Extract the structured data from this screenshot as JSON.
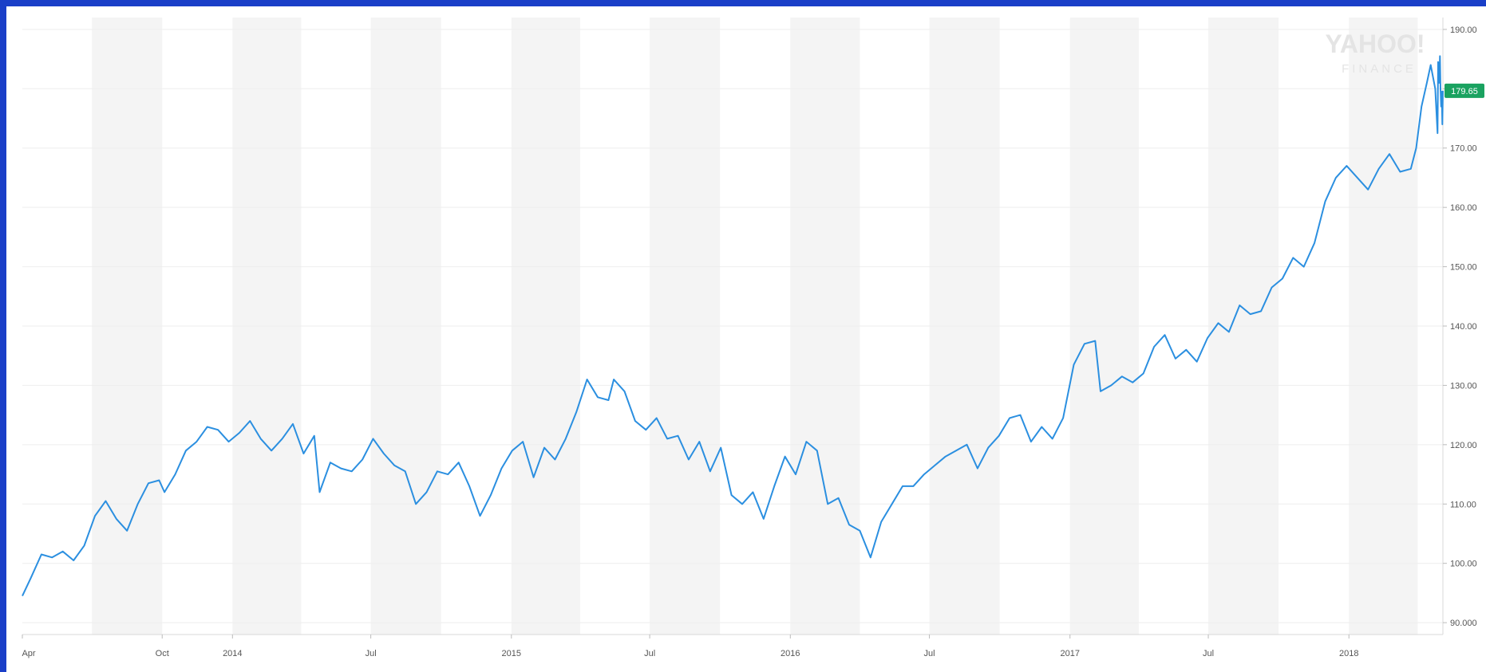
{
  "colors": {
    "line": "#2b8fe0",
    "last_price_bg": "#1aa260",
    "band": "#f4f4f4",
    "border": "#1a3fc8"
  },
  "watermark": {
    "brand": "YAHOO!",
    "sub": "FINANCE"
  },
  "last_price": "179.65",
  "chart_data": {
    "type": "line",
    "title": "",
    "xlabel": "",
    "ylabel": "",
    "ylim": [
      88,
      192
    ],
    "y_ticks": [
      "190.00",
      "180.00",
      "170.00",
      "160.00",
      "150.00",
      "140.00",
      "130.00",
      "120.00",
      "110.00",
      "100.00",
      "90.000"
    ],
    "y_tick_values": [
      190,
      180,
      170,
      160,
      150,
      140,
      130,
      120,
      110,
      100,
      90
    ],
    "x_ticks": [
      "Apr",
      "Oct",
      "2014",
      "Jul",
      "2015",
      "Jul",
      "2016",
      "Jul",
      "2017",
      "Jul",
      "2018"
    ],
    "x_tick_values": [
      "2013-04-01",
      "2013-10-01",
      "2014-01-01",
      "2014-07-01",
      "2015-01-01",
      "2015-07-01",
      "2016-01-01",
      "2016-07-01",
      "2017-01-01",
      "2017-07-01",
      "2018-01-01"
    ],
    "x_range": [
      "2013-04-01",
      "2018-05-04"
    ],
    "grid": true,
    "series": [
      {
        "points": [
          [
            "2013-04-01",
            94.5
          ],
          [
            "2013-04-12",
            97.5
          ],
          [
            "2013-04-26",
            101.5
          ],
          [
            "2013-05-10",
            101.0
          ],
          [
            "2013-05-24",
            102.0
          ],
          [
            "2013-06-07",
            100.5
          ],
          [
            "2013-06-21",
            103.0
          ],
          [
            "2013-07-05",
            108.0
          ],
          [
            "2013-07-19",
            110.5
          ],
          [
            "2013-08-02",
            107.5
          ],
          [
            "2013-08-16",
            105.5
          ],
          [
            "2013-08-30",
            110.0
          ],
          [
            "2013-09-13",
            113.5
          ],
          [
            "2013-09-27",
            114.0
          ],
          [
            "2013-10-04",
            112.0
          ],
          [
            "2013-10-18",
            115.0
          ],
          [
            "2013-11-01",
            119.0
          ],
          [
            "2013-11-15",
            120.5
          ],
          [
            "2013-11-29",
            123.0
          ],
          [
            "2013-12-13",
            122.5
          ],
          [
            "2013-12-27",
            120.5
          ],
          [
            "2014-01-10",
            122.0
          ],
          [
            "2014-01-24",
            124.0
          ],
          [
            "2014-02-07",
            121.0
          ],
          [
            "2014-02-21",
            119.0
          ],
          [
            "2014-03-07",
            121.0
          ],
          [
            "2014-03-21",
            123.5
          ],
          [
            "2014-04-04",
            118.5
          ],
          [
            "2014-04-18",
            121.5
          ],
          [
            "2014-04-25",
            112.0
          ],
          [
            "2014-05-09",
            117.0
          ],
          [
            "2014-05-23",
            116.0
          ],
          [
            "2014-06-06",
            115.5
          ],
          [
            "2014-06-20",
            117.5
          ],
          [
            "2014-07-04",
            121.0
          ],
          [
            "2014-07-18",
            118.5
          ],
          [
            "2014-08-01",
            116.5
          ],
          [
            "2014-08-15",
            115.5
          ],
          [
            "2014-08-29",
            110.0
          ],
          [
            "2014-09-12",
            112.0
          ],
          [
            "2014-09-26",
            115.5
          ],
          [
            "2014-10-10",
            115.0
          ],
          [
            "2014-10-24",
            117.0
          ],
          [
            "2014-11-07",
            113.0
          ],
          [
            "2014-11-21",
            108.0
          ],
          [
            "2014-12-05",
            111.5
          ],
          [
            "2014-12-19",
            116.0
          ],
          [
            "2015-01-02",
            119.0
          ],
          [
            "2015-01-16",
            120.5
          ],
          [
            "2015-01-30",
            114.5
          ],
          [
            "2015-02-13",
            119.5
          ],
          [
            "2015-02-27",
            117.5
          ],
          [
            "2015-03-13",
            121.0
          ],
          [
            "2015-03-27",
            125.5
          ],
          [
            "2015-04-10",
            131.0
          ],
          [
            "2015-04-24",
            128.0
          ],
          [
            "2015-05-08",
            127.5
          ],
          [
            "2015-05-15",
            131.0
          ],
          [
            "2015-05-29",
            129.0
          ],
          [
            "2015-06-12",
            124.0
          ],
          [
            "2015-06-26",
            122.5
          ],
          [
            "2015-07-10",
            124.5
          ],
          [
            "2015-07-24",
            121.0
          ],
          [
            "2015-08-07",
            121.5
          ],
          [
            "2015-08-21",
            117.5
          ],
          [
            "2015-09-04",
            120.5
          ],
          [
            "2015-09-18",
            115.5
          ],
          [
            "2015-10-02",
            119.5
          ],
          [
            "2015-10-16",
            111.5
          ],
          [
            "2015-10-30",
            110.0
          ],
          [
            "2015-11-13",
            112.0
          ],
          [
            "2015-11-27",
            107.5
          ],
          [
            "2015-12-11",
            113.0
          ],
          [
            "2015-12-25",
            118.0
          ],
          [
            "2016-01-08",
            115.0
          ],
          [
            "2016-01-22",
            120.5
          ],
          [
            "2016-02-05",
            119.0
          ],
          [
            "2016-02-19",
            110.0
          ],
          [
            "2016-03-04",
            111.0
          ],
          [
            "2016-03-18",
            106.5
          ],
          [
            "2016-04-01",
            105.5
          ],
          [
            "2016-04-15",
            101.0
          ],
          [
            "2016-04-29",
            107.0
          ],
          [
            "2016-05-13",
            110.0
          ],
          [
            "2016-05-27",
            113.0
          ],
          [
            "2016-06-10",
            113.0
          ],
          [
            "2016-06-24",
            115.0
          ],
          [
            "2016-07-08",
            116.5
          ],
          [
            "2016-07-22",
            118.0
          ],
          [
            "2016-08-05",
            119.0
          ],
          [
            "2016-08-19",
            120.0
          ],
          [
            "2016-09-02",
            116.0
          ],
          [
            "2016-09-16",
            119.5
          ],
          [
            "2016-09-30",
            121.5
          ],
          [
            "2016-10-14",
            124.5
          ],
          [
            "2016-10-28",
            125.0
          ],
          [
            "2016-11-11",
            120.5
          ],
          [
            "2016-11-25",
            123.0
          ],
          [
            "2016-12-09",
            121.0
          ],
          [
            "2016-12-23",
            124.5
          ],
          [
            "2017-01-06",
            133.5
          ],
          [
            "2017-01-20",
            137.0
          ],
          [
            "2017-02-03",
            137.5
          ],
          [
            "2017-02-10",
            129.0
          ],
          [
            "2017-02-24",
            130.0
          ],
          [
            "2017-03-10",
            131.5
          ],
          [
            "2017-03-24",
            130.5
          ],
          [
            "2017-04-07",
            132.0
          ],
          [
            "2017-04-21",
            136.5
          ],
          [
            "2017-05-05",
            138.5
          ],
          [
            "2017-05-19",
            134.5
          ],
          [
            "2017-06-02",
            136.0
          ],
          [
            "2017-06-16",
            134.0
          ],
          [
            "2017-06-30",
            138.0
          ],
          [
            "2017-07-14",
            140.5
          ],
          [
            "2017-07-28",
            139.0
          ],
          [
            "2017-08-11",
            143.5
          ],
          [
            "2017-08-25",
            142.0
          ],
          [
            "2017-09-08",
            142.5
          ],
          [
            "2017-09-22",
            146.5
          ],
          [
            "2017-10-06",
            148.0
          ],
          [
            "2017-10-20",
            151.5
          ],
          [
            "2017-11-03",
            150.0
          ],
          [
            "2017-11-17",
            154.0
          ],
          [
            "2017-12-01",
            161.0
          ],
          [
            "2017-12-15",
            165.0
          ],
          [
            "2017-12-29",
            167.0
          ],
          [
            "2018-01-12",
            165.0
          ],
          [
            "2018-01-26",
            163.0
          ],
          [
            "2018-02-09",
            166.5
          ],
          [
            "2018-02-23",
            169.0
          ],
          [
            "2018-03-09",
            166.0
          ],
          [
            "2018-03-23",
            166.5
          ],
          [
            "2018-03-30",
            170.0
          ],
          [
            "2018-04-06",
            177.0
          ],
          [
            "2018-04-13",
            181.0
          ],
          [
            "2018-04-18",
            184.0
          ],
          [
            "2018-04-24",
            180.0
          ],
          [
            "2018-04-27",
            172.5
          ],
          [
            "2018-04-30",
            184.5
          ],
          [
            "2018-05-01",
            184.0
          ],
          [
            "2018-05-02",
            181.0
          ],
          [
            "2018-05-03",
            185.5
          ],
          [
            "2018-05-03",
            180.0
          ],
          [
            "2018-05-04",
            177.0
          ],
          [
            "2018-05-04",
            179.5
          ],
          [
            "2018-05-04",
            174.0
          ],
          [
            "2018-05-04",
            179.65
          ]
        ]
      }
    ]
  }
}
